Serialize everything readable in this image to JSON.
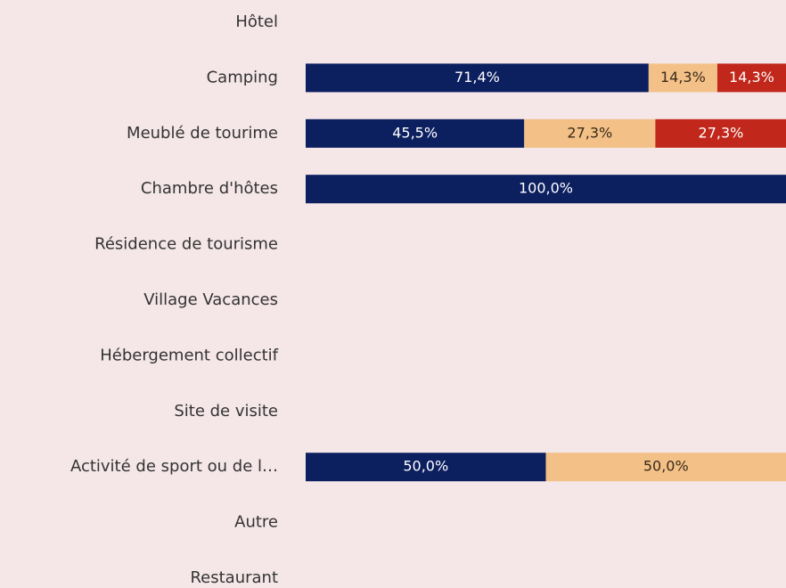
{
  "chart_data": {
    "type": "stacked_barh",
    "categories": [
      "Hôtel",
      "Camping",
      "Meublé de tourime",
      "Chambre d'hôtes",
      "Résidence de tourisme",
      "Village Vacances",
      "Hébergement collectif",
      "Site de visite",
      "Activité de sport ou de l…",
      "Autre",
      "Restaurant"
    ],
    "xlim": [
      0,
      100
    ],
    "series": [
      {
        "color": "#0c1f5f",
        "values": [
          null,
          71.4,
          45.5,
          100,
          null,
          null,
          null,
          null,
          50,
          null,
          null
        ],
        "value_labels": [
          null,
          "71,4%",
          "45,5%",
          "100,0%",
          null,
          null,
          null,
          null,
          "50,0%",
          null,
          null
        ]
      },
      {
        "color": "#f3c187",
        "values": [
          null,
          14.3,
          27.3,
          null,
          null,
          null,
          null,
          null,
          50,
          null,
          null
        ],
        "value_labels": [
          null,
          "14,3%",
          "27,3%",
          null,
          null,
          null,
          null,
          null,
          "50,0%",
          null,
          null
        ]
      },
      {
        "color": "#c1271b",
        "values": [
          null,
          14.3,
          27.3,
          null,
          null,
          null,
          null,
          null,
          null,
          null,
          null
        ],
        "value_labels": [
          null,
          "14,3%",
          "27,3%",
          null,
          null,
          null,
          null,
          null,
          null,
          null,
          null
        ]
      }
    ]
  }
}
